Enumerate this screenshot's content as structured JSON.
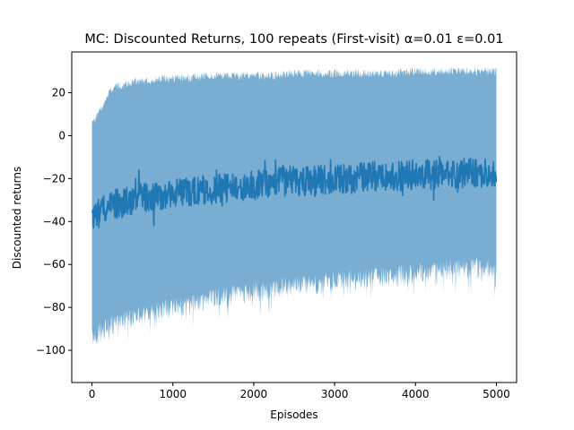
{
  "chart_data": {
    "type": "line",
    "title": "MC: Discounted Returns, 100 repeats (First-visit) α=0.01 ε=0.01",
    "xlabel": "Episodes",
    "ylabel": "Discounted returns",
    "xlim": [
      -250,
      5250
    ],
    "ylim": [
      -115,
      39
    ],
    "xticks": [
      0,
      1000,
      2000,
      3000,
      4000,
      5000
    ],
    "yticks": [
      20,
      0,
      -20,
      -40,
      -60,
      -80,
      -100
    ],
    "grid": false,
    "legend": "none",
    "colors": {
      "line": "#1f77b4",
      "band": "#1f77b4",
      "band_opacity": 0.6
    },
    "series": [
      {
        "x": [
          0,
          250,
          500,
          750,
          1000,
          1250,
          1500,
          1750,
          2000,
          2250,
          2500,
          2750,
          3000,
          3250,
          3500,
          3750,
          4000,
          4250,
          4500,
          4750,
          5000
        ],
        "mean": [
          -38,
          -32,
          -30,
          -28,
          -27,
          -26,
          -25,
          -24,
          -23,
          -22,
          -21,
          -21,
          -20,
          -20,
          -19,
          -19,
          -18,
          -18,
          -18,
          -17,
          -17
        ],
        "upper": [
          5,
          22,
          25,
          26,
          27,
          27,
          28,
          28,
          28,
          28,
          29,
          29,
          29,
          29,
          29,
          29,
          30,
          30,
          30,
          30,
          30
        ],
        "lower": [
          -95,
          -88,
          -85,
          -83,
          -80,
          -78,
          -76,
          -74,
          -73,
          -72,
          -70,
          -69,
          -68,
          -67,
          -66,
          -65,
          -64,
          -63,
          -62,
          -62,
          -62
        ]
      }
    ]
  }
}
